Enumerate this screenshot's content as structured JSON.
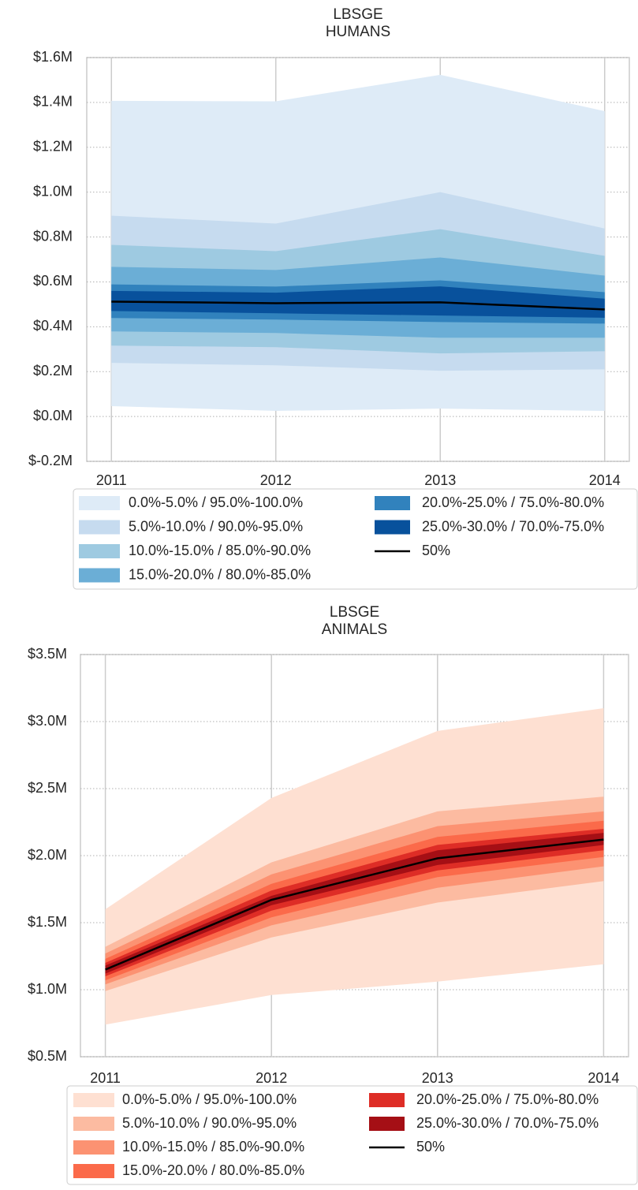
{
  "chart_data": [
    {
      "type": "fan",
      "title": "LBSGE",
      "subtitle": "HUMANS",
      "x": [
        2011,
        2012,
        2013,
        2014
      ],
      "xlim": [
        2010.85,
        2014.15
      ],
      "xticks": [
        2011,
        2012,
        2013,
        2014
      ],
      "ylim": [
        -200000,
        1600000
      ],
      "yticks": [
        {
          "value": -200000,
          "label": "$-0.2M"
        },
        {
          "value": 0,
          "label": "$0.0M"
        },
        {
          "value": 200000,
          "label": "$0.2M"
        },
        {
          "value": 400000,
          "label": "$0.4M"
        },
        {
          "value": 600000,
          "label": "$0.6M"
        },
        {
          "value": 800000,
          "label": "$0.8M"
        },
        {
          "value": 1000000,
          "label": "$1.0M"
        },
        {
          "value": 1200000,
          "label": "$1.2M"
        },
        {
          "value": 1400000,
          "label": "$1.4M"
        },
        {
          "value": 1600000,
          "label": "$1.6M"
        }
      ],
      "grid": true,
      "legend": "below",
      "series": [
        {
          "name": "0.0%-5.0% / 95.0%-100.0%",
          "color": "#deebf7",
          "low": [
            46000,
            25000,
            35000,
            25000
          ],
          "high": [
            1407000,
            1405000,
            1523000,
            1361000
          ]
        },
        {
          "name": "5.0%-10.0% / 90.0%-95.0%",
          "color": "#c6dbef",
          "low": [
            239000,
            228000,
            204000,
            210000
          ],
          "high": [
            895000,
            860000,
            1000000,
            838000
          ]
        },
        {
          "name": "10.0%-15.0% / 85.0%-90.0%",
          "color": "#9ecae1",
          "low": [
            316000,
            309000,
            281000,
            291000
          ],
          "high": [
            765000,
            737000,
            835000,
            716000
          ]
        },
        {
          "name": "15.0%-20.0% / 80.0%-85.0%",
          "color": "#6baed6",
          "low": [
            379000,
            372000,
            351000,
            351000
          ],
          "high": [
            667000,
            653000,
            709000,
            628000
          ]
        },
        {
          "name": "20.0%-25.0% / 75.0%-80.0%",
          "color": "#3182bd",
          "low": [
            439000,
            432000,
            421000,
            414000
          ],
          "high": [
            589000,
            579000,
            607000,
            554000
          ]
        },
        {
          "name": "25.0%-30.0% / 70.0%-75.0%",
          "color": "#08519c",
          "low": [
            470000,
            460000,
            450000,
            440000
          ],
          "high": [
            560000,
            552000,
            580000,
            525000
          ]
        },
        {
          "name": "50%",
          "color": "#000000",
          "values": [
            512000,
            505000,
            509000,
            477000
          ]
        }
      ]
    },
    {
      "type": "fan",
      "title": "LBSGE",
      "subtitle": "ANIMALS",
      "x": [
        2011,
        2012,
        2013,
        2014
      ],
      "xlim": [
        2010.85,
        2014.15
      ],
      "xticks": [
        2011,
        2012,
        2013,
        2014
      ],
      "ylim": [
        500000,
        3500000
      ],
      "yticks": [
        {
          "value": 500000,
          "label": "$0.5M"
        },
        {
          "value": 1000000,
          "label": "$1.0M"
        },
        {
          "value": 1500000,
          "label": "$1.5M"
        },
        {
          "value": 2000000,
          "label": "$2.0M"
        },
        {
          "value": 2500000,
          "label": "$2.5M"
        },
        {
          "value": 3000000,
          "label": "$3.0M"
        },
        {
          "value": 3500000,
          "label": "$3.5M"
        }
      ],
      "grid": true,
      "legend": "below",
      "series": [
        {
          "name": "0.0%-5.0% / 95.0%-100.0%",
          "color": "#fee0d2",
          "low": [
            740000,
            960000,
            1060000,
            1190000
          ],
          "high": [
            1600000,
            2430000,
            2930000,
            3100000
          ]
        },
        {
          "name": "5.0%-10.0% / 90.0%-95.0%",
          "color": "#fcbba1",
          "low": [
            990000,
            1390000,
            1650000,
            1810000
          ],
          "high": [
            1320000,
            1950000,
            2330000,
            2440000
          ]
        },
        {
          "name": "10.0%-15.0% / 85.0%-90.0%",
          "color": "#fc9272",
          "low": [
            1040000,
            1480000,
            1760000,
            1920000
          ],
          "high": [
            1270000,
            1860000,
            2220000,
            2330000
          ]
        },
        {
          "name": "15.0%-20.0% / 80.0%-85.0%",
          "color": "#fb6a4a",
          "low": [
            1070000,
            1540000,
            1840000,
            1990000
          ],
          "high": [
            1230000,
            1790000,
            2140000,
            2260000
          ]
        },
        {
          "name": "20.0%-25.0% / 75.0%-80.0%",
          "color": "#de2d26",
          "low": [
            1100000,
            1590000,
            1890000,
            2040000
          ],
          "high": [
            1200000,
            1740000,
            2080000,
            2200000
          ]
        },
        {
          "name": "25.0%-30.0% / 70.0%-75.0%",
          "color": "#a50f15",
          "low": [
            1120000,
            1630000,
            1930000,
            2080000
          ],
          "high": [
            1180000,
            1700000,
            2040000,
            2170000
          ]
        },
        {
          "name": "50%",
          "color": "#000000",
          "values": [
            1150000,
            1670000,
            1980000,
            2120000
          ]
        }
      ]
    }
  ]
}
